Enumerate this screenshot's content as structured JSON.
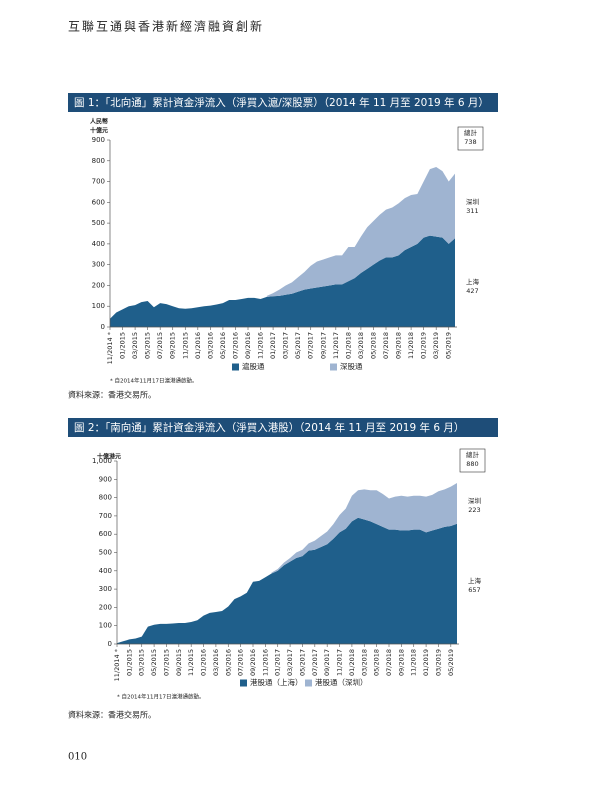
{
  "header": "互聯互通與香港新經濟融資創新",
  "page_number": "010",
  "chart_data": [
    {
      "type": "stacked-area",
      "title": "圖 1：「北向通」累計資金淨流入（淨買入滬/深股票）（2014 年 11 月至 2019 年 6 月）",
      "y_label": [
        "人民幣",
        "十億元"
      ],
      "categories": [
        "11/2014 *",
        null,
        "01/2015",
        null,
        "03/2015",
        null,
        "05/2015",
        null,
        "07/2015",
        null,
        "09/2015",
        null,
        "11/2015",
        null,
        "01/2016",
        null,
        "03/2016",
        null,
        "05/2016",
        null,
        "07/2016",
        null,
        "09/2016",
        null,
        "11/2016",
        null,
        "01/2017",
        null,
        "03/2017",
        null,
        "05/2017",
        null,
        "07/2017",
        null,
        "09/2017",
        null,
        "11/2017",
        null,
        "01/2018",
        null,
        "03/2018",
        null,
        "05/2018",
        null,
        "07/2018",
        null,
        "09/2018",
        null,
        "11/2018",
        null,
        "01/2019",
        null,
        "03/2019",
        null,
        "05/2019",
        null
      ],
      "series": [
        {
          "name": "滬股通",
          "color": "#1f5f8b",
          "values": [
            40,
            70,
            85,
            100,
            105,
            120,
            125,
            95,
            115,
            110,
            100,
            90,
            88,
            90,
            95,
            100,
            103,
            108,
            115,
            130,
            130,
            135,
            140,
            140,
            135,
            145,
            148,
            150,
            155,
            160,
            170,
            180,
            185,
            190,
            195,
            200,
            205,
            205,
            220,
            235,
            260,
            280,
            300,
            320,
            335,
            335,
            345,
            370,
            385,
            400,
            430,
            440,
            435,
            430,
            400,
            427
          ]
        },
        {
          "name": "深股通",
          "color": "#9fb4d1",
          "values": [
            null,
            null,
            null,
            null,
            null,
            null,
            null,
            null,
            null,
            null,
            null,
            null,
            null,
            null,
            null,
            null,
            null,
            null,
            null,
            null,
            null,
            null,
            null,
            null,
            null,
            5,
            15,
            30,
            45,
            55,
            70,
            85,
            110,
            125,
            130,
            135,
            140,
            140,
            165,
            150,
            175,
            200,
            210,
            220,
            230,
            240,
            250,
            250,
            250,
            240,
            270,
            320,
            335,
            320,
            300,
            311
          ]
        }
      ],
      "ylim": [
        0,
        900
      ],
      "yticks": [
        0,
        100,
        200,
        300,
        400,
        500,
        600,
        700,
        800,
        900
      ],
      "annotations": [
        {
          "text": "總計",
          "value": 738
        },
        {
          "text": "深圳",
          "value": 311
        },
        {
          "text": "上海",
          "value": 427
        }
      ],
      "footnote": "* 自2014年11月17日滬港通啟動。",
      "source": "資料來源：香港交易所。"
    },
    {
      "type": "stacked-area",
      "title": "圖 2：「南向通」累計資金淨流入（淨買入港股）（2014 年 11 月至 2019 年 6 月）",
      "y_label": [
        "十億港元"
      ],
      "categories": [
        "11/2014 *",
        null,
        "01/2015",
        null,
        "03/2015",
        null,
        "05/2015",
        null,
        "07/2015",
        null,
        "09/2015",
        null,
        "11/2015",
        null,
        "01/2016",
        null,
        "03/2016",
        null,
        "05/2016",
        null,
        "07/2016",
        null,
        "09/2016",
        null,
        "11/2016",
        null,
        "01/2017",
        null,
        "03/2017",
        null,
        "05/2017",
        null,
        "07/2017",
        null,
        "09/2017",
        null,
        "11/2017",
        null,
        "01/2018",
        null,
        "03/2018",
        null,
        "05/2018",
        null,
        "07/2018",
        null,
        "09/2018",
        null,
        "11/2018",
        null,
        "01/2019",
        null,
        "03/2019",
        null,
        "05/2019",
        null
      ],
      "series": [
        {
          "name": "港股通（上海）",
          "color": "#1f5f8b",
          "values": [
            5,
            15,
            25,
            30,
            40,
            95,
            105,
            110,
            110,
            112,
            115,
            115,
            120,
            130,
            155,
            170,
            175,
            180,
            205,
            245,
            260,
            280,
            340,
            345,
            365,
            385,
            400,
            430,
            450,
            470,
            480,
            510,
            515,
            530,
            545,
            575,
            610,
            630,
            670,
            690,
            680,
            670,
            655,
            640,
            625,
            625,
            620,
            620,
            625,
            625,
            610,
            620,
            630,
            640,
            645,
            657
          ]
        },
        {
          "name": "港股通（深圳）",
          "color": "#9fb4d1",
          "values": [
            null,
            null,
            null,
            null,
            null,
            null,
            null,
            null,
            null,
            null,
            null,
            null,
            null,
            null,
            null,
            null,
            null,
            null,
            null,
            null,
            null,
            null,
            null,
            null,
            null,
            5,
            10,
            15,
            20,
            30,
            35,
            40,
            50,
            60,
            70,
            80,
            95,
            110,
            140,
            150,
            165,
            170,
            185,
            180,
            170,
            180,
            190,
            185,
            185,
            185,
            195,
            195,
            205,
            205,
            215,
            223
          ]
        }
      ],
      "ylim": [
        0,
        1000
      ],
      "yticks": [
        0,
        100,
        200,
        300,
        400,
        500,
        600,
        700,
        800,
        900,
        {
          "value": 1000,
          "label": "1,000"
        }
      ],
      "annotations": [
        {
          "text": "總計",
          "value": 880
        },
        {
          "text": "深圳",
          "value": 223
        },
        {
          "text": "上海",
          "value": 657
        }
      ],
      "footnote": "* 自2014年11月17日滬港通啟動。",
      "source": "資料來源：香港交易所。"
    }
  ]
}
